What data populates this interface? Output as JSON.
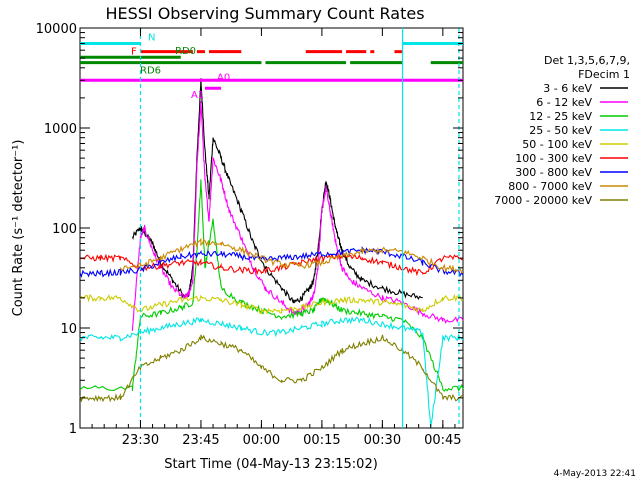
{
  "chart_data": {
    "type": "line",
    "title": "HESSI Observing Summary Count Rates",
    "xlabel": "Start Time (04-May-13 23:15:02)",
    "ylabel": "Count Rate (s⁻¹ detector⁻¹)",
    "x_range_minutes_from_start": [
      0,
      95
    ],
    "ylim": [
      1,
      10000
    ],
    "yscale": "log",
    "x_ticks": [
      {
        "label": "23:30",
        "t": 15
      },
      {
        "label": "23:45",
        "t": 30
      },
      {
        "label": "00:00",
        "t": 45
      },
      {
        "label": "00:15",
        "t": 60
      },
      {
        "label": "00:30",
        "t": 75
      },
      {
        "label": "00:45",
        "t": 90
      }
    ],
    "y_ticks": [
      {
        "label": "1",
        "v": 1
      },
      {
        "label": "10",
        "v": 10
      },
      {
        "label": "100",
        "v": 100
      },
      {
        "label": "1000",
        "v": 1000
      },
      {
        "label": "10000",
        "v": 10000
      }
    ],
    "legend_header": [
      "Det 1,3,5,6,7,9,",
      "FDecim 1"
    ],
    "legend_position": "right",
    "series": [
      {
        "name": "3 - 6 keV",
        "color": "#000000",
        "t": [
          0,
          5,
          10,
          13,
          15,
          16,
          18,
          20,
          23,
          26,
          27,
          28,
          29,
          30,
          31,
          32,
          33,
          35,
          37,
          40,
          43,
          46,
          50,
          53,
          55,
          57,
          58,
          59,
          60,
          61,
          62,
          63,
          64,
          65,
          67,
          70,
          75,
          80,
          85,
          86
        ],
        "v": [
          null,
          null,
          null,
          80,
          100,
          90,
          70,
          45,
          30,
          20,
          22,
          40,
          500,
          3000,
          600,
          200,
          800,
          500,
          300,
          150,
          70,
          40,
          25,
          18,
          20,
          25,
          30,
          60,
          150,
          300,
          200,
          120,
          80,
          60,
          40,
          30,
          25,
          22,
          20,
          null
        ]
      },
      {
        "name": "6 - 12 keV",
        "color": "#ff00ff",
        "t": [
          0,
          13,
          15,
          16,
          18,
          20,
          23,
          26,
          27,
          28,
          29,
          30,
          31,
          32,
          33,
          35,
          37,
          40,
          43,
          46,
          50,
          53,
          55,
          57,
          58,
          59,
          60,
          61,
          62,
          63,
          64,
          65,
          67,
          70,
          75,
          80,
          85,
          90,
          95
        ],
        "v": [
          null,
          10,
          80,
          100,
          60,
          40,
          25,
          20,
          22,
          30,
          400,
          1800,
          300,
          120,
          500,
          300,
          150,
          80,
          40,
          25,
          18,
          14,
          15,
          18,
          22,
          40,
          150,
          250,
          150,
          90,
          55,
          40,
          30,
          25,
          20,
          18,
          14,
          12,
          12
        ]
      },
      {
        "name": "12 - 25 keV",
        "color": "#00cc00",
        "t": [
          0,
          13,
          15,
          20,
          25,
          28,
          29,
          30,
          31,
          33,
          35,
          40,
          45,
          50,
          55,
          58,
          60,
          62,
          65,
          70,
          75,
          80,
          85,
          90,
          95
        ],
        "v": [
          2.5,
          2.5,
          13,
          14,
          16,
          18,
          60,
          300,
          40,
          120,
          25,
          18,
          15,
          13,
          14,
          15,
          20,
          18,
          15,
          14,
          13,
          12,
          8,
          2.5,
          2.5
        ]
      },
      {
        "name": "25 - 50 keV",
        "color": "#00e5e5",
        "t": [
          0,
          5,
          10,
          15,
          20,
          25,
          30,
          35,
          40,
          45,
          50,
          55,
          60,
          65,
          70,
          75,
          80,
          85,
          87,
          90,
          95
        ],
        "v": [
          8,
          8,
          8,
          9,
          10,
          11,
          12,
          11,
          10,
          9,
          9,
          10,
          11,
          12,
          12,
          11,
          10,
          9,
          1,
          8,
          8
        ]
      },
      {
        "name": "50 - 100 keV",
        "color": "#cccc00",
        "t": [
          0,
          5,
          10,
          15,
          20,
          25,
          30,
          35,
          40,
          45,
          50,
          55,
          60,
          65,
          70,
          75,
          80,
          85,
          90,
          95
        ],
        "v": [
          20,
          20,
          20,
          15,
          17,
          19,
          20,
          19,
          17,
          15,
          15,
          16,
          18,
          19,
          19,
          18,
          17,
          15,
          20,
          20
        ]
      },
      {
        "name": "100 - 300 keV",
        "color": "#ff0000",
        "t": [
          0,
          5,
          10,
          15,
          20,
          25,
          30,
          35,
          40,
          45,
          50,
          55,
          60,
          65,
          70,
          75,
          80,
          85,
          90,
          95
        ],
        "v": [
          50,
          50,
          50,
          40,
          42,
          45,
          45,
          40,
          38,
          37,
          40,
          45,
          50,
          52,
          50,
          45,
          40,
          35,
          50,
          50
        ]
      },
      {
        "name": "300 - 800 keV",
        "color": "#0000ff",
        "t": [
          0,
          5,
          10,
          15,
          20,
          25,
          30,
          35,
          40,
          45,
          50,
          55,
          60,
          65,
          70,
          75,
          80,
          85,
          90,
          95
        ],
        "v": [
          35,
          35,
          36,
          38,
          45,
          52,
          55,
          55,
          52,
          48,
          50,
          52,
          55,
          57,
          60,
          58,
          52,
          45,
          37,
          35
        ]
      },
      {
        "name": "800 - 7000 keV",
        "color": "#cc8800",
        "t": [
          0,
          5,
          10,
          15,
          20,
          25,
          30,
          35,
          40,
          45,
          50,
          55,
          60,
          65,
          70,
          75,
          80,
          85,
          90,
          95
        ],
        "v": [
          null,
          null,
          40,
          42,
          50,
          62,
          72,
          70,
          60,
          50,
          43,
          42,
          45,
          52,
          58,
          60,
          58,
          50,
          40,
          38
        ]
      },
      {
        "name": "7000 - 20000 keV",
        "color": "#808000",
        "t": [
          0,
          5,
          10,
          15,
          20,
          25,
          30,
          35,
          40,
          45,
          50,
          55,
          60,
          65,
          70,
          75,
          80,
          85,
          90,
          95
        ],
        "v": [
          2,
          2,
          2,
          4,
          5,
          6,
          8,
          7,
          6,
          4,
          3,
          3,
          4,
          6,
          7,
          8,
          6,
          4,
          2,
          2
        ]
      }
    ],
    "flag_bars": [
      {
        "label": "N",
        "color": "#00e5e5",
        "level": 7000,
        "segments": [
          [
            0,
            15
          ],
          [
            80,
            95
          ]
        ]
      },
      {
        "label": "F",
        "color": "#ff0000",
        "level": 5800,
        "segments": [
          [
            15,
            28
          ],
          [
            29,
            31
          ],
          [
            32,
            40
          ],
          [
            56,
            65
          ],
          [
            66,
            71
          ],
          [
            72,
            73
          ],
          [
            78,
            80
          ]
        ]
      },
      {
        "label": "RD0",
        "color": "#008800",
        "level": 5100,
        "segments": [
          [
            0,
            25
          ]
        ]
      },
      {
        "label": "RD6",
        "color": "#008800",
        "level": 4500,
        "segments": [
          [
            0,
            45
          ],
          [
            46,
            66
          ],
          [
            67,
            80
          ],
          [
            87,
            95
          ]
        ]
      },
      {
        "label": "A1",
        "color": "#ff00ff",
        "level": 2500,
        "segments": [
          [
            31,
            35
          ]
        ]
      },
      {
        "label": "A0",
        "color": "#ff00ff",
        "level": 3000,
        "segments": [
          [
            0,
            95
          ]
        ]
      }
    ],
    "vertical_markers": [
      {
        "t": 15,
        "color": "#00e5e5",
        "style": "dashed"
      },
      {
        "t": 80,
        "color": "#00e5e5",
        "style": "solid"
      },
      {
        "t": 94,
        "color": "#00e5e5",
        "style": "dashed"
      }
    ]
  },
  "footer": {
    "timestamp": "4-May-2013 22:41"
  }
}
